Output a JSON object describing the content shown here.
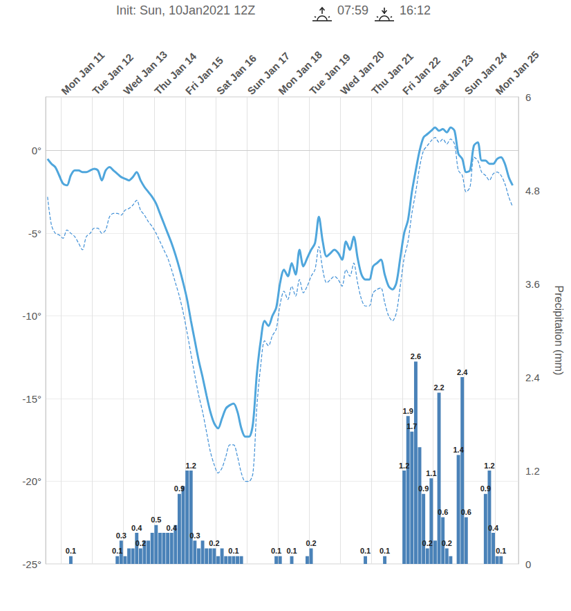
{
  "chart_data": {
    "type": "line",
    "title": "Init: Sun, 10Jan2021 12Z",
    "annotations": {
      "sunrise": "07:59",
      "sunset": "16:12"
    },
    "categories": [
      null,
      null,
      null,
      null,
      "Mon Jan 11",
      null,
      null,
      null,
      null,
      null,
      null,
      null,
      "Tue Jan 12",
      null,
      null,
      null,
      null,
      null,
      null,
      null,
      "Wed Jan 13",
      null,
      null,
      null,
      null,
      null,
      null,
      null,
      "Thu Jan 14",
      null,
      null,
      null,
      null,
      null,
      null,
      null,
      "Fri Jan 15",
      null,
      null,
      null,
      null,
      null,
      null,
      null,
      "Sat Jan 16",
      null,
      null,
      null,
      null,
      null,
      null,
      null,
      "Sun Jan 17",
      null,
      null,
      null,
      null,
      null,
      null,
      null,
      "Mon Jan 18",
      null,
      null,
      null,
      null,
      null,
      null,
      null,
      "Tue Jan 19",
      null,
      null,
      null,
      null,
      null,
      null,
      null,
      "Wed Jan 20",
      null,
      null,
      null,
      null,
      null,
      null,
      null,
      "Thu Jan 21",
      null,
      null,
      null,
      null,
      null,
      null,
      null,
      "Fri Jan 22",
      null,
      null,
      null,
      null,
      null,
      null,
      null,
      "Sat Jan 23",
      null,
      null,
      null,
      null,
      null,
      null,
      null,
      "Sun Jan 24",
      null,
      null,
      null,
      null,
      null,
      null,
      null,
      "Mon Jan 25",
      null,
      null,
      null,
      null,
      null
    ],
    "ylim": [
      -25,
      3.25
    ],
    "yticks": [
      {
        "value": -25,
        "label": "-25°"
      },
      {
        "value": -20,
        "label": "-20°"
      },
      {
        "value": -15,
        "label": "-15°"
      },
      {
        "value": -10,
        "label": "-10°"
      },
      {
        "value": -5,
        "label": "-5°"
      },
      {
        "value": 0,
        "label": "0°"
      }
    ],
    "y2label": "Precipitation (mm)",
    "y2lim": [
      0,
      6
    ],
    "y2ticks": [
      0,
      1.2,
      2.4,
      3.6,
      4.8,
      6
    ],
    "grid": true,
    "data_labels": true,
    "series": [
      {
        "type": "line",
        "line_style": "solid",
        "color": "#4fa6dc",
        "colors": [
          "#4fa6dc",
          "#4fa6dc",
          "#4fa6dc",
          "#4fa6dc",
          "#4fa6dc",
          "#4fa6dc",
          "#4fa6dc",
          "#4fa6dc",
          "#4fa6dc",
          "#4fa6dc",
          "#4fa6dc",
          "#4fa6dc",
          "#4fa6dc",
          "#4fa6dc",
          "#4fa6dc",
          "#4fa6dc",
          "#4fa6dc",
          "#4fa6dc",
          "#4fa6dc",
          "#4fa6dc",
          "#4fa6dc",
          "#4fa6dc",
          "#4fa6dc",
          "#4fa6dc",
          "#4fa6dc",
          "#4fa6dc",
          "#4fa6dc",
          "#4fa6dc",
          "#4fa6dc",
          "#4fa6dc",
          "#4fa6dc",
          "#4fa6dc",
          "#4fa6dc",
          "#4fa6dc",
          "#4fa6dc",
          "#4fa6dc",
          "#4fa6dc",
          "#4fa6dc",
          "#4fa6dc",
          "#4fa6dc",
          "#4fa6dc",
          "#4fa6dc",
          "#4fa6dc",
          "#4fa6dc",
          "#4fa6dc",
          "#4fa6dc",
          "#4fa6dc",
          "#4fa6dc",
          "#4fa6dc",
          "#4fa6dc",
          "#4fa6dc",
          "#4fa6dc",
          "#4fa6dc",
          "#4fa6dc",
          "#4fa6dc",
          "#4fa6dc",
          "#4fa6dc",
          "#4fa6dc",
          "#4fa6dc",
          "#4fa6dc",
          "#4fa6dc",
          "#4fa6dc",
          "#4fa6dc",
          "#4fa6dc",
          "#4fa6dc",
          "#4fa6dc",
          "#4fa6dc",
          "#4fa6dc",
          "#4fa6dc",
          "#4fa6dc",
          "#4fa6dc",
          "#4fa6dc",
          "#4fa6dc",
          "#4fa6dc",
          "#4fa6dc",
          "#4fa6dc",
          "#4fa6dc",
          "#4fa6dc",
          "#4fa6dc",
          "#4fa6dc",
          "#4fa6dc",
          "#4fa6dc",
          "#4fa6dc",
          "#4fa6dc",
          "#4fa6dc",
          "#4fa6dc",
          "#4fa6dc",
          "#4fa6dc",
          "#4fa6dc",
          "#4fa6dc",
          "#4fa6dc",
          "#4fa6dc",
          "#4fa6dc",
          "#4fa6dc",
          "#4fa6dc",
          "#4fa6dc",
          "#4fa6dc",
          "#e03a2f",
          "#e03a2f",
          "#e03a2f",
          "#e03a2f",
          "#e03a2f",
          "#e03a2f",
          "#e03a2f",
          "#e03a2f",
          "#e03a2f",
          "#4fa6dc",
          "#4fa6dc",
          "#4fa6dc",
          "#4fa6dc",
          "#e03a2f",
          "#e03a2f",
          "#4fa6dc",
          "#4fa6dc",
          "#4fa6dc",
          "#4fa6dc",
          "#4fa6dc",
          "#4fa6dc",
          "#4fa6dc",
          "#4fa6dc",
          "#4fa6dc",
          "#4fa6dc"
        ],
        "values": [
          -0.5,
          -0.8,
          -1.0,
          -1.5,
          -2.0,
          -2.1,
          -1.5,
          -1.2,
          -1.2,
          -1.3,
          -1.3,
          -1.2,
          -1.1,
          -1.2,
          -1.8,
          -1.2,
          -1.0,
          -1.2,
          -1.4,
          -1.6,
          -1.7,
          -1.8,
          -1.6,
          -1.3,
          -1.8,
          -2.2,
          -2.5,
          -2.8,
          -3.2,
          -3.8,
          -4.4,
          -5.0,
          -5.6,
          -6.3,
          -7.1,
          -8.0,
          -9.0,
          -10.3,
          -11.5,
          -12.7,
          -13.7,
          -14.8,
          -15.8,
          -16.5,
          -16.8,
          -16.2,
          -15.6,
          -15.4,
          -15.3,
          -15.8,
          -16.8,
          -17.3,
          -17.3,
          -16.5,
          -13.5,
          -11.5,
          -10.3,
          -10.6,
          -10.0,
          -9.5,
          -8.0,
          -7.2,
          -7.6,
          -6.8,
          -7.5,
          -6.0,
          -7.0,
          -6.5,
          -6.0,
          -5.6,
          -4.0,
          -5.5,
          -6.4,
          -6.2,
          -6.0,
          -6.2,
          -6.6,
          -5.5,
          -6.0,
          -5.2,
          -6.5,
          -7.5,
          -7.8,
          -7.8,
          -7.0,
          -6.8,
          -6.6,
          -7.5,
          -8.2,
          -8.4,
          -8.0,
          -6.5,
          -5.0,
          -4.2,
          -2.5,
          -1.2,
          0,
          0.8,
          1.0,
          1.2,
          1.4,
          1.2,
          1.3,
          1.1,
          1.4,
          1.2,
          -0.2,
          -0.5,
          -1.3,
          -1.2,
          0.3,
          0.5,
          -0.6,
          -0.6,
          -0.8,
          -0.8,
          -0.5,
          -0.4,
          -0.8,
          -1.6,
          -2.1,
          null
        ]
      },
      {
        "type": "line",
        "line_style": "dashed",
        "color": "#3f8fd6",
        "values": [
          -2.8,
          -4.5,
          -5.0,
          -5.1,
          -5.3,
          -4.8,
          -5.0,
          -5.2,
          -5.6,
          -6.0,
          -5.2,
          -5.0,
          -4.7,
          -4.7,
          -5.0,
          -4.8,
          -4.0,
          -3.8,
          -3.8,
          -3.9,
          -3.6,
          -3.5,
          -3.3,
          -3.0,
          -3.6,
          -3.9,
          -4.3,
          -4.6,
          -5.0,
          -5.5,
          -6.0,
          -6.5,
          -7.2,
          -8.0,
          -8.8,
          -9.8,
          -11.0,
          -12.3,
          -13.6,
          -14.8,
          -15.8,
          -17.0,
          -18.2,
          -19.0,
          -19.5,
          -19.2,
          -18.5,
          -17.8,
          -17.8,
          -18.5,
          -19.5,
          -20.0,
          -20.0,
          -19.5,
          -15.5,
          -13.0,
          -11.5,
          -11.8,
          -11.2,
          -10.8,
          -9.3,
          -8.5,
          -9.0,
          -8.2,
          -8.8,
          -7.8,
          -8.6,
          -8.2,
          -7.6,
          -7.2,
          -5.8,
          -7.2,
          -8.0,
          -7.8,
          -7.6,
          -7.8,
          -8.2,
          -7.2,
          -7.6,
          -6.8,
          -8.0,
          -9.0,
          -9.4,
          -9.4,
          -8.6,
          -8.4,
          -8.3,
          -9.2,
          -10.0,
          -10.3,
          -9.8,
          -8.2,
          -6.5,
          -5.5,
          -3.8,
          -2.5,
          -1.0,
          0,
          0.3,
          0.6,
          0.8,
          0.5,
          0.7,
          0.4,
          0.7,
          0.4,
          -1.2,
          -1.5,
          -2.5,
          -2.2,
          -0.4,
          -0.6,
          -1.3,
          -1.5,
          -1.8,
          -1.4,
          -1.3,
          -1.5,
          -2.0,
          -2.8,
          -3.4,
          null
        ]
      },
      {
        "type": "bar",
        "axis": "y2",
        "color": "#4a82b8",
        "values": [
          0,
          0,
          0,
          0,
          0,
          0,
          0.1,
          0,
          0,
          0,
          0,
          0,
          0,
          0,
          0,
          0,
          0,
          0,
          0.1,
          0.3,
          0.1,
          0.2,
          0.2,
          0.4,
          0.2,
          0.3,
          0.3,
          0.4,
          0.5,
          0.4,
          0.4,
          0.4,
          0.4,
          0.5,
          0.9,
          1.0,
          1.2,
          1.2,
          0.3,
          0.2,
          0.3,
          0.2,
          0.2,
          0.2,
          0.1,
          0.2,
          0.1,
          0.1,
          0.1,
          0.1,
          0.1,
          0,
          0,
          0,
          0,
          0,
          0,
          0,
          0,
          0.1,
          0.1,
          0,
          0,
          0.1,
          0,
          0,
          0,
          0.1,
          0.2,
          0,
          0,
          0,
          0,
          0,
          0,
          0,
          0,
          0,
          0,
          0,
          0,
          0,
          0.1,
          0,
          0,
          0,
          0,
          0.1,
          0,
          0,
          0,
          0,
          1.2,
          1.9,
          1.7,
          2.6,
          1.5,
          0.9,
          0.2,
          1.1,
          0.3,
          2.2,
          0.6,
          0.2,
          0.1,
          0,
          1.4,
          2.4,
          0.6,
          0,
          0,
          0,
          0,
          0.9,
          1.2,
          0.4,
          0.1,
          0.1,
          0,
          0,
          0,
          0
        ],
        "value_labels": [
          null,
          null,
          null,
          null,
          null,
          null,
          "0.1",
          null,
          null,
          null,
          null,
          null,
          null,
          null,
          null,
          null,
          null,
          null,
          "0.1",
          "0.3",
          null,
          null,
          null,
          "0.4",
          "0.2",
          null,
          null,
          null,
          "0.5",
          null,
          null,
          null,
          "0.4",
          null,
          "0.9",
          null,
          null,
          "1.2",
          "0.3",
          null,
          null,
          null,
          null,
          "0.2",
          null,
          null,
          null,
          null,
          "0.1",
          null,
          null,
          null,
          null,
          null,
          null,
          null,
          null,
          null,
          null,
          "0.1",
          null,
          null,
          null,
          "0.1",
          null,
          null,
          null,
          null,
          "0.2",
          null,
          null,
          null,
          null,
          null,
          null,
          null,
          null,
          null,
          null,
          null,
          null,
          null,
          "0.1",
          null,
          null,
          null,
          null,
          "0.1",
          null,
          null,
          null,
          null,
          "1.2",
          "1.9",
          "1.7",
          "2.6",
          null,
          "0.9",
          "0.2",
          "1.1",
          null,
          "2.2",
          "0.6",
          "0.2",
          null,
          null,
          "1.4",
          "2.4",
          "0.6",
          null,
          null,
          null,
          null,
          "0.9",
          "1.2",
          "0.4",
          null,
          "0.1",
          null,
          null,
          null,
          null
        ]
      }
    ]
  }
}
